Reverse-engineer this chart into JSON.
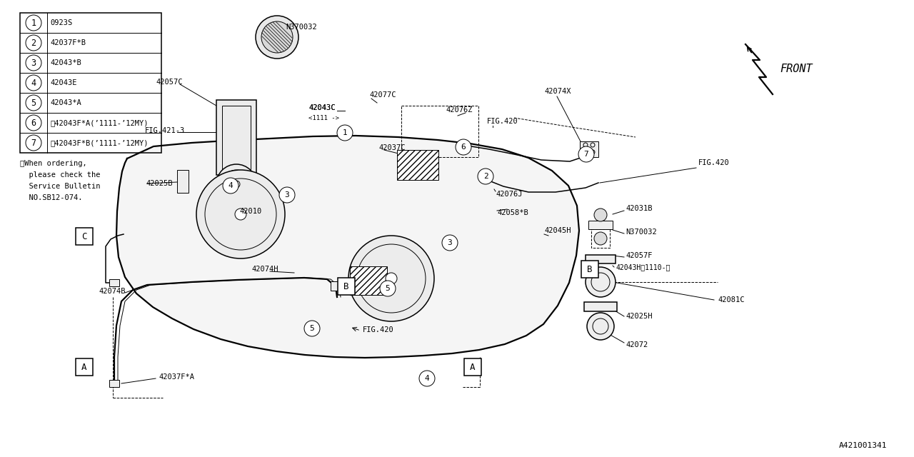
{
  "bg_color": "#ffffff",
  "line_color": "#000000",
  "fig_ref": "A421001341",
  "legend_items": [
    [
      "1",
      "0923S"
    ],
    [
      "2",
      "42037F*B"
    ],
    [
      "3",
      "42043*B"
    ],
    [
      "4",
      "42043E"
    ],
    [
      "5",
      "42043*A"
    ],
    [
      "6",
      "※42043F*A(’1111-’12MY)"
    ],
    [
      "7",
      "※42043F*B(’1111-’12MY)"
    ]
  ],
  "note_lines": [
    "※When ordering,",
    "  please check the",
    "  Service Bulletin",
    "  NO.SB12-074."
  ],
  "front_label": "FRONT"
}
